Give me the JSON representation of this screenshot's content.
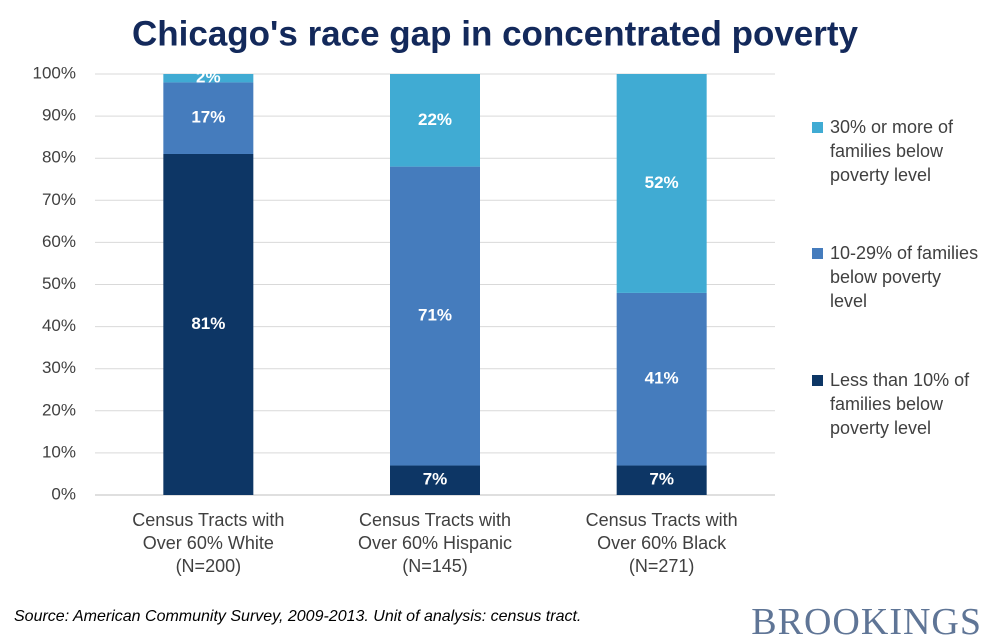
{
  "chart_data": {
    "type": "stacked-bar",
    "title": "Chicago's race gap in concentrated poverty",
    "categories": [
      "Census Tracts with\nOver 60% White\n(N=200)",
      "Census Tracts with\nOver 60% Hispanic\n(N=145)",
      "Census Tracts with\nOver 60% Black\n(N=271)"
    ],
    "series": [
      {
        "name": "Less than 10% of families below poverty level",
        "color": "#0d3665",
        "values": [
          81,
          7,
          7
        ],
        "value_labels": [
          "81%",
          "7%",
          "7%"
        ]
      },
      {
        "name": "10-29% of families below poverty level",
        "color": "#457cbd",
        "values": [
          17,
          71,
          41
        ],
        "value_labels": [
          "17%",
          "71%",
          "41%"
        ]
      },
      {
        "name": "30% or more of families below poverty level",
        "color": "#40abd3",
        "values": [
          2,
          22,
          52
        ],
        "value_labels": [
          "2%",
          "22%",
          "52%"
        ]
      }
    ],
    "ylim": [
      0,
      100
    ],
    "yticks": [
      {
        "value": 0,
        "label": "0%"
      },
      {
        "value": 10,
        "label": "10%"
      },
      {
        "value": 20,
        "label": "20%"
      },
      {
        "value": 30,
        "label": "30%"
      },
      {
        "value": 40,
        "label": "40%"
      },
      {
        "value": 50,
        "label": "50%"
      },
      {
        "value": 60,
        "label": "60%"
      },
      {
        "value": 70,
        "label": "70%"
      },
      {
        "value": 80,
        "label": "80%"
      },
      {
        "value": 90,
        "label": "90%"
      },
      {
        "value": 100,
        "label": "100%"
      }
    ],
    "grid": true,
    "legend": "right",
    "source": "Source: American Community Survey, 2009-2013. Unit of analysis: census tract.",
    "logo": "BROOKINGS"
  }
}
